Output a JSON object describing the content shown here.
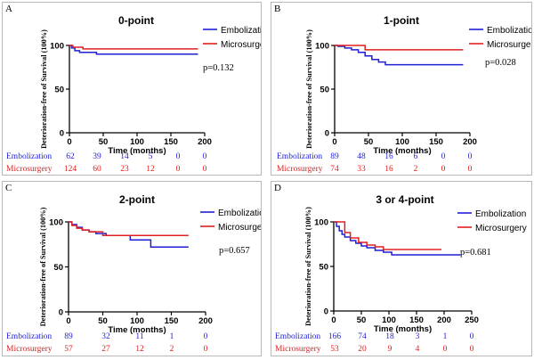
{
  "figure": {
    "colors": {
      "embolization": "#1f1fd6",
      "microsurgery": "#e02020",
      "axis": "#000000"
    }
  },
  "chart_data": [
    {
      "type": "line",
      "panel_label": "A",
      "title": "0-point",
      "ylabel": "Deterioration-free of Survival (100%)",
      "xlabel": "Time (months)",
      "xlim": [
        0,
        200
      ],
      "ylim": [
        0,
        100
      ],
      "xticks": [
        "0",
        "50",
        "100",
        "150",
        "200"
      ],
      "yticks": [
        "0",
        "50",
        "100"
      ],
      "p_value": "p=0.132",
      "legend": [
        "Embolization",
        "Microsurgery"
      ],
      "series": [
        {
          "name": "Embolization",
          "x": [
            0,
            3,
            8,
            15,
            40,
            190
          ],
          "y": [
            100,
            97,
            94,
            92,
            90,
            90
          ]
        },
        {
          "name": "Microsurgery",
          "x": [
            0,
            5,
            20,
            190
          ],
          "y": [
            100,
            98,
            96,
            96
          ]
        }
      ],
      "risk_table": {
        "rows": [
          {
            "label": "Embolization",
            "values": [
              "62",
              "39",
              "14",
              "5",
              "0",
              "0"
            ]
          },
          {
            "label": "Microsurgery",
            "values": [
              "124",
              "60",
              "23",
              "12",
              "0",
              "0"
            ]
          }
        ]
      }
    },
    {
      "type": "line",
      "panel_label": "B",
      "title": "1-point",
      "ylabel": "Deterioration-free of Survival (100%)",
      "xlabel": "Time (months)",
      "xlim": [
        0,
        200
      ],
      "ylim": [
        0,
        100
      ],
      "xticks": [
        "0",
        "50",
        "100",
        "150",
        "200"
      ],
      "yticks": [
        "0",
        "50",
        "100"
      ],
      "p_value": "p=0.028",
      "legend": [
        "Embolization",
        "Microsurgery"
      ],
      "series": [
        {
          "name": "Embolization",
          "x": [
            0,
            5,
            15,
            25,
            35,
            45,
            55,
            65,
            75,
            190
          ],
          "y": [
            100,
            99,
            97,
            95,
            92,
            88,
            84,
            81,
            78,
            78
          ]
        },
        {
          "name": "Microsurgery",
          "x": [
            0,
            45,
            190
          ],
          "y": [
            100,
            95,
            95
          ]
        }
      ],
      "risk_table": {
        "rows": [
          {
            "label": "Embolization",
            "values": [
              "89",
              "48",
              "16",
              "6",
              "0",
              "0"
            ]
          },
          {
            "label": "Microsurgery",
            "values": [
              "74",
              "33",
              "16",
              "2",
              "0",
              "0"
            ]
          }
        ]
      }
    },
    {
      "type": "line",
      "panel_label": "C",
      "title": "2-point",
      "ylabel": "Deterioration-free of Survival (100%)",
      "xlabel": "Time (months)",
      "xlim": [
        0,
        200
      ],
      "ylim": [
        0,
        100
      ],
      "xticks": [
        "0",
        "50",
        "100",
        "150",
        "200"
      ],
      "yticks": [
        "0",
        "50",
        "100"
      ],
      "p_value": "p=0.657",
      "legend": [
        "Embolization",
        "Microsurgery"
      ],
      "series": [
        {
          "name": "Embolization",
          "x": [
            0,
            5,
            12,
            20,
            30,
            40,
            55,
            90,
            120,
            175
          ],
          "y": [
            100,
            97,
            94,
            91,
            89,
            87,
            85,
            80,
            72,
            72
          ]
        },
        {
          "name": "Microsurgery",
          "x": [
            0,
            5,
            12,
            20,
            30,
            50,
            175
          ],
          "y": [
            100,
            96,
            93,
            91,
            89,
            85,
            85
          ]
        }
      ],
      "risk_table": {
        "rows": [
          {
            "label": "Embolization",
            "values": [
              "89",
              "32",
              "11",
              "1",
              "0"
            ]
          },
          {
            "label": "Microsurgery",
            "values": [
              "57",
              "27",
              "12",
              "2",
              "0"
            ]
          }
        ]
      }
    },
    {
      "type": "line",
      "panel_label": "D",
      "title": "3 or  4-point",
      "ylabel": "Deterioration-free of Survival (100%)",
      "xlabel": "Time (months)",
      "xlim": [
        0,
        250
      ],
      "ylim": [
        0,
        100
      ],
      "xticks": [
        "0",
        "50",
        "100",
        "150",
        "200",
        "250"
      ],
      "yticks": [
        "0",
        "50",
        "100"
      ],
      "p_value": "p=0.681",
      "legend": [
        "Embolization",
        "Microsurgery"
      ],
      "series": [
        {
          "name": "Embolization",
          "x": [
            0,
            5,
            10,
            15,
            20,
            30,
            40,
            50,
            60,
            75,
            90,
            105,
            230
          ],
          "y": [
            100,
            95,
            90,
            86,
            83,
            79,
            76,
            73,
            71,
            68,
            66,
            63,
            63
          ]
        },
        {
          "name": "Microsurgery",
          "x": [
            0,
            12,
            20,
            30,
            45,
            60,
            75,
            90,
            195
          ],
          "y": [
            100,
            100,
            88,
            82,
            77,
            74,
            72,
            69,
            69
          ]
        }
      ],
      "risk_table": {
        "rows": [
          {
            "label": "Embolization",
            "values": [
              "166",
              "74",
              "18",
              "3",
              "1",
              "0"
            ]
          },
          {
            "label": "Microsurgery",
            "values": [
              "53",
              "20",
              "9",
              "4",
              "0",
              "0"
            ]
          }
        ]
      }
    }
  ]
}
